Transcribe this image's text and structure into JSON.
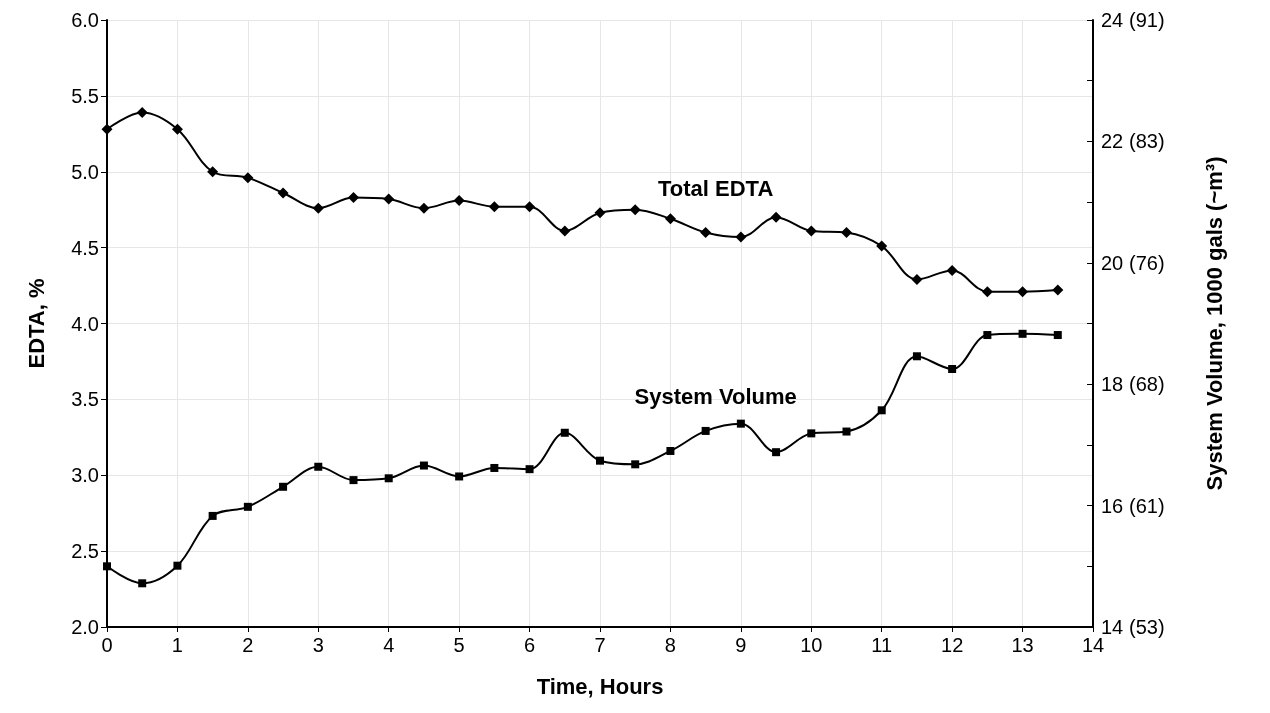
{
  "chart_data": {
    "type": "line",
    "xlabel": "Time, Hours",
    "ylabel": "EDTA, %",
    "y2label": "System Volume, 1000 gals (~m³)",
    "x": [
      0,
      0.5,
      1,
      1.5,
      2,
      2.5,
      3,
      3.5,
      4,
      4.5,
      5,
      5.5,
      6,
      6.5,
      7,
      7.5,
      8,
      8.5,
      9,
      9.5,
      10,
      10.5,
      11,
      11.5,
      12,
      12.5,
      13,
      13.5
    ],
    "series": [
      {
        "name": "Total EDTA",
        "color": "#000000",
        "marker": "diamond",
        "values": [
          5.28,
          5.39,
          5.28,
          5.0,
          4.96,
          4.86,
          4.76,
          4.83,
          4.82,
          4.76,
          4.81,
          4.77,
          4.77,
          4.61,
          4.73,
          4.75,
          4.69,
          4.6,
          4.57,
          4.7,
          4.61,
          4.6,
          4.51,
          4.29,
          4.35,
          4.21,
          4.21,
          4.22
        ]
      },
      {
        "name": "System Volume",
        "color": "#000000",
        "marker": "square",
        "axis": "y2",
        "values": [
          15.0,
          14.72,
          15.01,
          15.83,
          15.98,
          16.31,
          16.64,
          16.42,
          16.45,
          16.66,
          16.48,
          16.62,
          16.6,
          17.2,
          16.74,
          16.68,
          16.9,
          17.23,
          17.35,
          16.88,
          17.19,
          17.22,
          17.57,
          18.46,
          18.25,
          18.81,
          18.83,
          18.81
        ]
      }
    ],
    "xlim": [
      0,
      14
    ],
    "xticks": [
      0,
      1,
      2,
      3,
      4,
      5,
      6,
      7,
      8,
      9,
      10,
      11,
      12,
      13,
      14
    ],
    "ylim": [
      2,
      6
    ],
    "yticks": [
      {
        "value": 2,
        "label": "2.0"
      },
      2.5,
      {
        "value": 3,
        "label": "3.0"
      },
      3.5,
      {
        "value": 4,
        "label": "4.0"
      },
      4.5,
      {
        "value": 5,
        "label": "5.0"
      },
      5.5,
      {
        "value": 6,
        "label": "6.0"
      }
    ],
    "y2lim": [
      14,
      24
    ],
    "y2ticks": [
      14,
      {
        "value": 15,
        "label": null
      },
      16,
      {
        "value": 17,
        "label": null
      },
      18,
      {
        "value": 19,
        "label": null
      },
      20,
      {
        "value": 21,
        "label": null
      },
      22,
      {
        "value": 23,
        "label": null
      },
      24
    ],
    "y3lim": [
      53,
      90.85
    ],
    "y3ticks": [
      {
        "value": 53,
        "label": "(53)"
      },
      {
        "value": 60.57,
        "label": "(61)"
      },
      {
        "value": 68.14,
        "label": "(68)"
      },
      {
        "value": 75.71,
        "label": "(76)"
      },
      {
        "value": 83.28,
        "label": "(83)"
      },
      {
        "value": 90.85,
        "label": "(91)"
      }
    ],
    "grid": true,
    "legend": false,
    "line_style": "solid"
  }
}
